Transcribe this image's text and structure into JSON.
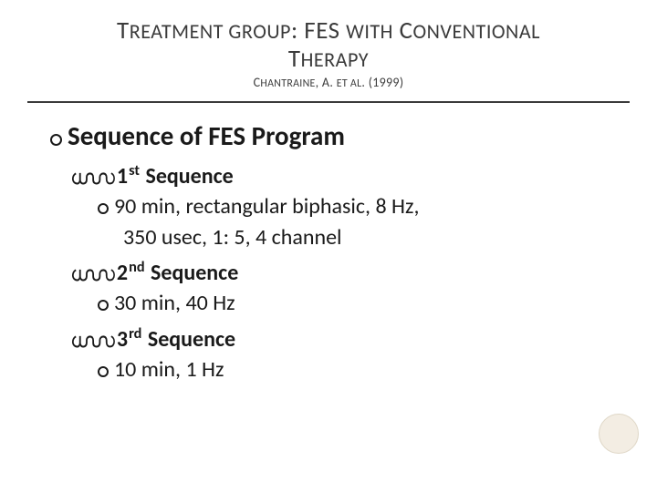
{
  "header": {
    "title_html": "T<span style='font-size:0.82em'>REATMENT GROUP</span>: FES <span style='font-size:0.82em'>WITH</span> C<span style='font-size:0.82em'>ONVENTIONAL</span><br>T<span style='font-size:0.82em'>HERAPY</span>",
    "subtitle_html": "C<span style='font-size:0.85em'>HANTRAINE</span>, A. <span style='font-size:0.85em'>ET AL</span>. (1999)"
  },
  "content": {
    "main_heading": "Sequence of FES Program",
    "sequences": [
      {
        "label_html": "1<span class='ordsup'>st</span> Sequence",
        "detail_lines": [
          "90 min, rectangular biphasic, 8 Hz,",
          "350 usec, 1: 5, 4 channel"
        ]
      },
      {
        "label_html": "2<span class='ordsup'>nd</span> Sequence",
        "detail_lines": [
          "30 min, 40 Hz"
        ]
      },
      {
        "label_html": "3<span class='ordsup'>rd</span> Sequence",
        "detail_lines": [
          "10 min, 1 Hz"
        ]
      }
    ]
  },
  "style": {
    "background": "#ffffff",
    "text_color": "#1a1a1a",
    "rule_color": "#3b3b3b",
    "corner_circle_fill": "#f3ede3",
    "corner_circle_stroke": "#dfd7c7"
  }
}
